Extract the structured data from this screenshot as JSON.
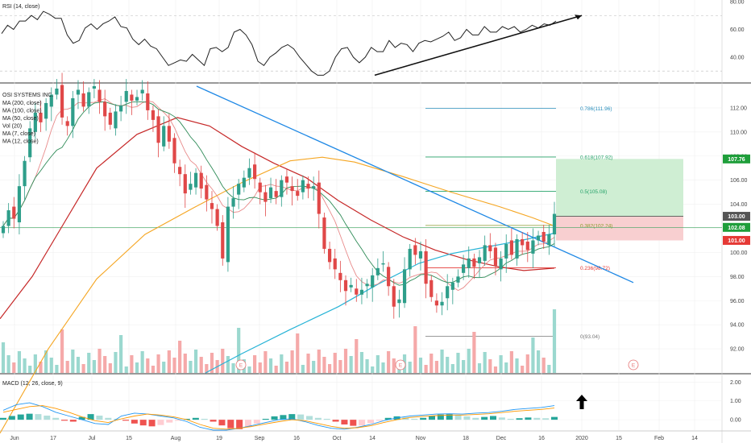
{
  "chart_data": [
    {
      "type": "line",
      "panel": "rsi",
      "indicator_label": "RSI (14, close)",
      "ylim": [
        22,
        80
      ],
      "y_ticks": [
        "80.00",
        "60.00",
        "40.00"
      ],
      "grid": true,
      "series": [
        {
          "values": [
            57,
            63,
            60,
            66,
            66,
            70,
            67,
            73,
            71,
            68,
            68,
            56,
            50,
            52,
            61,
            64,
            60,
            64,
            66,
            69,
            62,
            61,
            53,
            49,
            53,
            48,
            46,
            40,
            34,
            36,
            38,
            37,
            42,
            38,
            34,
            46,
            47,
            44,
            47,
            58,
            60,
            56,
            49,
            37,
            34,
            40,
            43,
            47,
            49,
            46,
            40,
            35,
            30,
            27,
            27,
            30,
            40,
            46,
            47,
            40,
            36,
            40,
            47,
            44,
            44,
            52,
            47,
            50,
            49,
            44,
            50,
            52,
            51,
            53,
            55,
            58,
            52,
            54,
            60,
            56,
            56,
            62,
            58,
            58,
            62,
            60,
            62,
            58,
            60,
            63,
            61,
            64,
            63,
            66
          ]
        }
      ],
      "trendline": {
        "label": "rsi-rising-trendline"
      }
    },
    {
      "type": "candlestick",
      "panel": "price",
      "ylim": [
        90,
        114
      ],
      "y_ticks": [
        "112.00",
        "110.00",
        "108.00",
        "106.00",
        "104.00",
        "102.00",
        "100.00",
        "98.00",
        "96.00",
        "94.00",
        "92.00"
      ],
      "grid": true,
      "ticker_label": "OSI SYSTEMS INC.",
      "legend": [
        "MA (200, close)",
        "MA (100, close)",
        "MA (50, close)",
        "Vol (20)",
        "MA (7, close)",
        "MA (12, close)"
      ],
      "closes": [
        102.2,
        103.5,
        102.8,
        105.5,
        107.6,
        110.3,
        111.6,
        110.8,
        112.4,
        113.1,
        113.6,
        111.2,
        110.5,
        112.8,
        113.5,
        112.1,
        113.3,
        113.8,
        112.5,
        111.3,
        110.6,
        111.7,
        112.2,
        113.4,
        112.6,
        112.9,
        113.5,
        111.8,
        111.0,
        109.1,
        110.5,
        109.2,
        107.4,
        106.5,
        104.9,
        105.7,
        106.6,
        105.3,
        104.4,
        103.6,
        102.2,
        99.5,
        103.8,
        104.5,
        105.7,
        106.2,
        107.0,
        106.1,
        105.0,
        104.2,
        105.4,
        104.6,
        106.0,
        105.8,
        105.1,
        104.7,
        106.0,
        105.3,
        105.5,
        103.2,
        100.3,
        99.2,
        98.6,
        97.7,
        96.8,
        97.3,
        96.5,
        96.9,
        97.4,
        98.1,
        98.7,
        99.1,
        97.2,
        95.5,
        96.1,
        98.6,
        100.3,
        99.8,
        100.1,
        97.4,
        96.3,
        95.6,
        95.9,
        97.2,
        97.5,
        98.0,
        99.0,
        99.5,
        98.8,
        99.6,
        100.6,
        100.1,
        98.9,
        99.5,
        100.7,
        99.8,
        101.1,
        100.6,
        100.2,
        101.0,
        101.4,
        100.9,
        101.5,
        103.2
      ],
      "fib_levels": [
        {
          "label": "0.786(111.96)",
          "value": 111.96,
          "color": "#2a8fbd"
        },
        {
          "label": "0.618(107.92)",
          "value": 107.92,
          "color": "#26a269"
        },
        {
          "label": "0.5(105.08)",
          "value": 105.08,
          "color": "#26a269"
        },
        {
          "label": "0.382(102.24)",
          "value": 102.24,
          "color": "#8a9a2a"
        },
        {
          "label": "0.236(98.72)",
          "value": 98.72,
          "color": "#e53935"
        },
        {
          "label": "0(93.04)",
          "value": 93.04,
          "color": "#777777"
        }
      ],
      "target_zone": {
        "low": 103.0,
        "high": 107.76
      },
      "stop_zone": {
        "low": 101.0,
        "high": 103.0
      },
      "price_tags": [
        {
          "label": "107.76",
          "value": 107.76,
          "color": "#1e9e3a"
        },
        {
          "label": "103.00",
          "value": 103.0,
          "color": "#555555"
        },
        {
          "label": "102.08",
          "value": 102.08,
          "color": "#1e9e3a"
        },
        {
          "label": "101.00",
          "value": 101.0,
          "color": "#e53935"
        }
      ],
      "earnings_markers": [
        "E",
        "E",
        "E"
      ],
      "colors": {
        "up": "#2e9e8a",
        "down": "#e04848",
        "ma200": "#c62828",
        "ma100": "#f5a623",
        "ma50": "#26b3d6",
        "ma_fast": "#e88a8a",
        "ma_slow": "#2e8b57",
        "downtrend": "#1e88e5"
      }
    },
    {
      "type": "bar",
      "panel": "macd",
      "indicator_label": "MACD (12, 26, close, 9)",
      "ylim": [
        -0.55,
        2.4
      ],
      "y_ticks": [
        "2.00",
        "1.00",
        "0.00"
      ],
      "histogram": [
        0.1,
        0.2,
        0.28,
        0.32,
        0.3,
        0.22,
        0.1,
        -0.05,
        -0.1,
        0.15,
        0.3,
        0.22,
        0.1,
        0.05,
        -0.05,
        -0.2,
        -0.3,
        -0.35,
        -0.28,
        -0.15,
        -0.05,
        0.05,
        0.1,
        0.05,
        -0.1,
        -0.3,
        -0.45,
        -0.5,
        -0.4,
        -0.2,
        0.05,
        0.18,
        0.25,
        0.3,
        0.28,
        0.2,
        0.1,
        0.05,
        -0.1,
        -0.25,
        -0.32,
        -0.3,
        -0.18,
        -0.05,
        0.1,
        0.18,
        0.12,
        0.05,
        0.1,
        0.2,
        0.28,
        0.3,
        0.25,
        0.18,
        0.1,
        0.15,
        0.2,
        0.12,
        0.05,
        0.08,
        0.12,
        0.1,
        0.08,
        0.15
      ],
      "macd_line": [
        0.5,
        0.8,
        0.9,
        0.7,
        0.4,
        0.2,
        0.0,
        -0.2,
        -0.25,
        0.2,
        0.35,
        0.3,
        0.2,
        0.1,
        -0.1,
        -0.4,
        -0.55,
        -0.55,
        -0.45,
        -0.3,
        -0.15,
        0.0,
        0.05,
        -0.1,
        -0.3,
        -0.45,
        -0.5,
        -0.4,
        -0.25,
        -0.05,
        0.1,
        0.2,
        0.25,
        0.3,
        0.32,
        0.3,
        0.35,
        0.38,
        0.45,
        0.55,
        0.6,
        0.65,
        0.75
      ],
      "signal_line": [
        0.4,
        0.55,
        0.7,
        0.75,
        0.6,
        0.4,
        0.15,
        -0.05,
        -0.15,
        0.05,
        0.2,
        0.3,
        0.25,
        0.15,
        0.0,
        -0.25,
        -0.45,
        -0.5,
        -0.45,
        -0.35,
        -0.22,
        -0.1,
        0.0,
        -0.05,
        -0.2,
        -0.35,
        -0.45,
        -0.42,
        -0.32,
        -0.15,
        0.0,
        0.12,
        0.18,
        0.22,
        0.25,
        0.25,
        0.28,
        0.32,
        0.38,
        0.45,
        0.5,
        0.55,
        0.62
      ],
      "annotation": "up-arrow",
      "colors": {
        "hist_up": "#26a69a",
        "hist_up_light": "#b2dfdb",
        "hist_down": "#ef5350",
        "hist_down_light": "#ffcdd2",
        "macd": "#2196f3",
        "signal": "#ff9800"
      }
    }
  ],
  "x_axis": {
    "tick_labels": [
      "Jun",
      "17",
      "Jul",
      "15",
      "Aug",
      "19",
      "Sep",
      "16",
      "Oct",
      "14",
      "Nov",
      "18",
      "Dec",
      "16",
      "2020",
      "15",
      "Feb",
      "14"
    ]
  }
}
